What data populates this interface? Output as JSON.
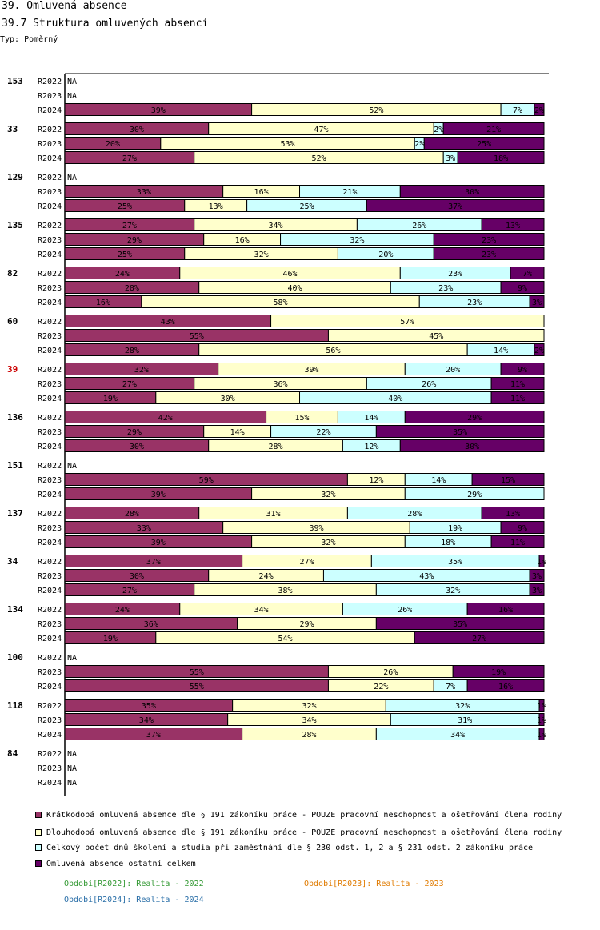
{
  "header": {
    "title": "39. Omluvená absence",
    "subtitle": "39.7 Struktura omluvených absencí",
    "type_label": "Typ: Poměrný"
  },
  "colors": {
    "highlight_label": "#cc0000",
    "period_r2022": "#339933",
    "period_r2023": "#e07b00",
    "period_r2024": "#2a6fa8"
  },
  "chart_data": {
    "type": "bar",
    "orientation": "horizontal-stacked-percent",
    "title": "39.7 Struktura omluvených absencí",
    "highlighted_group": "39",
    "na_label": "NA",
    "series": [
      {
        "name": "Krátkodobá omluvená absence dle § 191 zákoníku práce - POUZE pracovní neschopnost a ošetřování člena rodiny",
        "color": "#993366"
      },
      {
        "name": "Dlouhodobá omluvená absence dle § 191 zákoníku práce - POUZE pracovní neschopnost a ošetřování člena rodiny",
        "color": "#ffffcc"
      },
      {
        "name": "Celkový počet dnů školení a studia při zaměstnání dle § 230 odst. 1, 2 a § 231 odst. 2 zákoníku práce",
        "color": "#ccffff"
      },
      {
        "name": "Omluvená absence ostatní celkem",
        "color": "#660066"
      }
    ],
    "groups": [
      {
        "label": "153",
        "rows": [
          {
            "period": "R2022",
            "values": null
          },
          {
            "period": "R2023",
            "values": null
          },
          {
            "period": "R2024",
            "values": [
              39,
              52,
              7,
              2
            ]
          }
        ]
      },
      {
        "label": "33",
        "rows": [
          {
            "period": "R2022",
            "values": [
              30,
              47,
              2,
              21
            ]
          },
          {
            "period": "R2023",
            "values": [
              20,
              53,
              2,
              25
            ]
          },
          {
            "period": "R2024",
            "values": [
              27,
              52,
              3,
              18
            ]
          }
        ]
      },
      {
        "label": "129",
        "rows": [
          {
            "period": "R2022",
            "values": null
          },
          {
            "period": "R2023",
            "values": [
              33,
              16,
              21,
              30
            ]
          },
          {
            "period": "R2024",
            "values": [
              25,
              13,
              25,
              37
            ]
          }
        ]
      },
      {
        "label": "135",
        "rows": [
          {
            "period": "R2022",
            "values": [
              27,
              34,
              26,
              13
            ]
          },
          {
            "period": "R2023",
            "values": [
              29,
              16,
              32,
              23
            ]
          },
          {
            "period": "R2024",
            "values": [
              25,
              32,
              20,
              23
            ]
          }
        ]
      },
      {
        "label": "82",
        "rows": [
          {
            "period": "R2022",
            "values": [
              24,
              46,
              23,
              7
            ]
          },
          {
            "period": "R2023",
            "values": [
              28,
              40,
              23,
              9
            ]
          },
          {
            "period": "R2024",
            "values": [
              16,
              58,
              23,
              3
            ]
          }
        ]
      },
      {
        "label": "60",
        "rows": [
          {
            "period": "R2022",
            "values": [
              43,
              57,
              0,
              0
            ]
          },
          {
            "period": "R2023",
            "values": [
              55,
              45,
              0,
              0
            ]
          },
          {
            "period": "R2024",
            "values": [
              28,
              56,
              14,
              2
            ]
          }
        ]
      },
      {
        "label": "39",
        "rows": [
          {
            "period": "R2022",
            "values": [
              32,
              39,
              20,
              9
            ]
          },
          {
            "period": "R2023",
            "values": [
              27,
              36,
              26,
              11
            ]
          },
          {
            "period": "R2024",
            "values": [
              19,
              30,
              40,
              11
            ]
          }
        ]
      },
      {
        "label": "136",
        "rows": [
          {
            "period": "R2022",
            "values": [
              42,
              15,
              14,
              29
            ]
          },
          {
            "period": "R2023",
            "values": [
              29,
              14,
              22,
              35
            ]
          },
          {
            "period": "R2024",
            "values": [
              30,
              28,
              12,
              30
            ]
          }
        ]
      },
      {
        "label": "151",
        "rows": [
          {
            "period": "R2022",
            "values": null
          },
          {
            "period": "R2023",
            "values": [
              59,
              12,
              14,
              15
            ]
          },
          {
            "period": "R2024",
            "values": [
              39,
              32,
              29,
              0
            ]
          }
        ]
      },
      {
        "label": "137",
        "rows": [
          {
            "period": "R2022",
            "values": [
              28,
              31,
              28,
              13
            ]
          },
          {
            "period": "R2023",
            "values": [
              33,
              39,
              19,
              9
            ]
          },
          {
            "period": "R2024",
            "values": [
              39,
              32,
              18,
              11
            ]
          }
        ]
      },
      {
        "label": "34",
        "rows": [
          {
            "period": "R2022",
            "values": [
              37,
              27,
              35,
              1
            ]
          },
          {
            "period": "R2023",
            "values": [
              30,
              24,
              43,
              3
            ]
          },
          {
            "period": "R2024",
            "values": [
              27,
              38,
              32,
              3
            ]
          }
        ]
      },
      {
        "label": "134",
        "rows": [
          {
            "period": "R2022",
            "values": [
              24,
              34,
              26,
              16
            ]
          },
          {
            "period": "R2023",
            "values": [
              36,
              29,
              0,
              35
            ]
          },
          {
            "period": "R2024",
            "values": [
              19,
              54,
              0,
              27
            ]
          }
        ]
      },
      {
        "label": "100",
        "rows": [
          {
            "period": "R2022",
            "values": null
          },
          {
            "period": "R2023",
            "values": [
              55,
              26,
              0,
              19
            ]
          },
          {
            "period": "R2024",
            "values": [
              55,
              22,
              7,
              16
            ]
          }
        ]
      },
      {
        "label": "118",
        "rows": [
          {
            "period": "R2022",
            "values": [
              35,
              32,
              32,
              1
            ]
          },
          {
            "period": "R2023",
            "values": [
              34,
              34,
              31,
              1
            ]
          },
          {
            "period": "R2024",
            "values": [
              37,
              28,
              34,
              1
            ]
          }
        ]
      },
      {
        "label": "84",
        "rows": [
          {
            "period": "R2022",
            "values": null
          },
          {
            "period": "R2023",
            "values": null
          },
          {
            "period": "R2024",
            "values": null
          }
        ]
      }
    ]
  },
  "period_legend": [
    {
      "text": "Období[R2022]: Realita - 2022"
    },
    {
      "text": "Období[R2023]: Realita - 2023"
    },
    {
      "text": "Období[R2024]: Realita - 2024"
    }
  ]
}
